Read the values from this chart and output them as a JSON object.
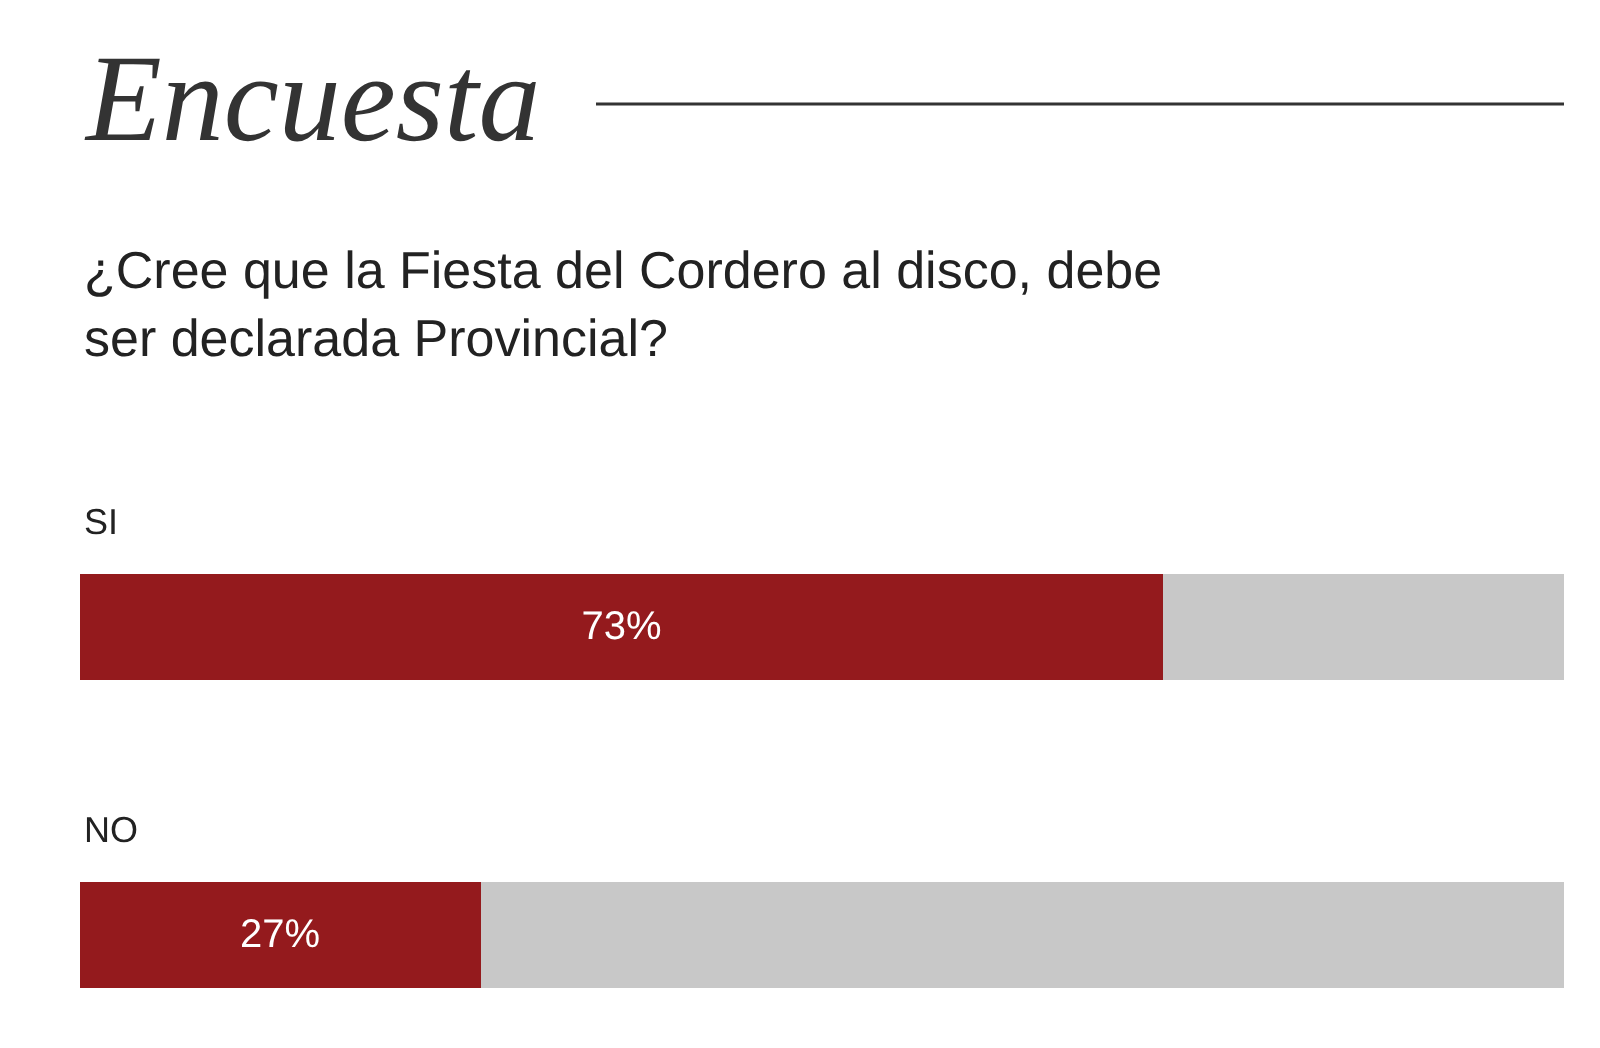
{
  "chart_data": {
    "type": "bar",
    "orientation": "horizontal",
    "stacked": true,
    "title": "Encuesta",
    "subtitle": "¿Cree que la Fiesta del Cordero al disco, debe ser declarada Provincial?",
    "categories": [
      "SI",
      "NO"
    ],
    "xlim": [
      0,
      100
    ],
    "tick_labels": false,
    "series": [
      {
        "color": "#941a1d",
        "values": [
          73,
          27
        ],
        "value_labels": [
          "73%",
          "27%"
        ]
      },
      {
        "color": "#c8c8c8",
        "values": [
          27,
          73
        ]
      }
    ]
  }
}
